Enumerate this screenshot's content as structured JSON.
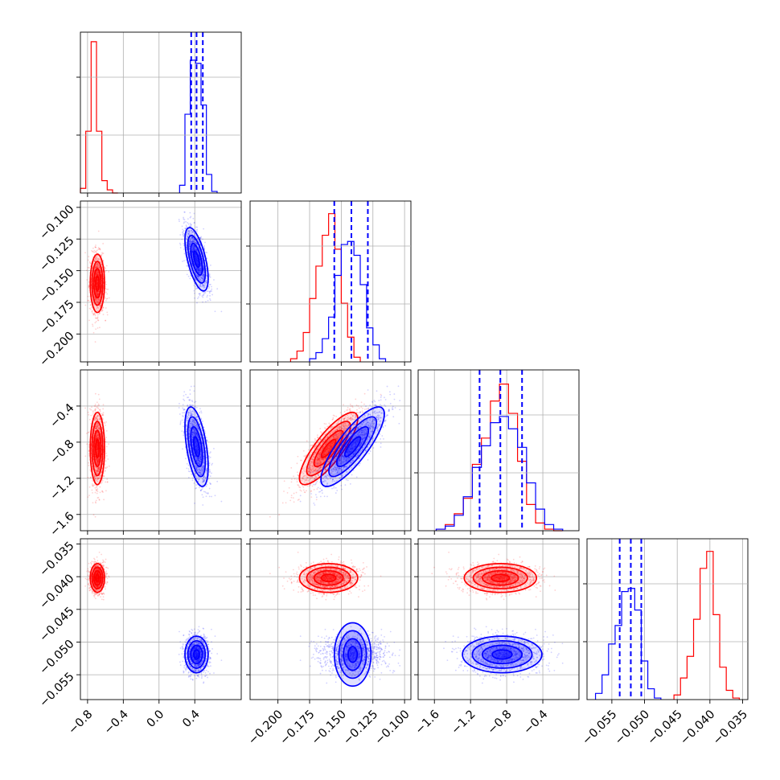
{
  "colors": {
    "red": "#ff0000",
    "blue": "#0000ff",
    "grid": "#b0b0b0",
    "axes": "#000000"
  },
  "chart_data": {
    "type": "corner",
    "grid": true,
    "parameters": [
      {
        "range": [
          -0.88,
          0.92
        ],
        "ticks": [
          -0.8,
          -0.4,
          0.0,
          0.4
        ],
        "tick_labels": [
          "−0.8",
          "−0.4",
          "0.0",
          "0.4"
        ],
        "quantiles_blue": [
          0.36,
          0.42,
          0.49
        ],
        "hist_red": {
          "edges": [
            -0.88,
            -0.82,
            -0.76,
            -0.7,
            -0.64,
            -0.58,
            -0.52,
            -0.46
          ],
          "counts": [
            0.03,
            0.4,
            0.98,
            0.4,
            0.08,
            0.02,
            0.0
          ]
        },
        "hist_blue": {
          "edges": [
            0.23,
            0.29,
            0.35,
            0.41,
            0.47,
            0.53,
            0.59,
            0.65
          ],
          "counts": [
            0.05,
            0.51,
            0.86,
            0.84,
            0.57,
            0.12,
            0.01
          ]
        }
      },
      {
        "range": [
          -0.222,
          -0.095
        ],
        "ticks": [
          -0.2,
          -0.175,
          -0.15,
          -0.125,
          -0.1
        ],
        "tick_labels": [
          "−0.200",
          "−0.175",
          "−0.150",
          "−0.125",
          "−0.100"
        ],
        "quantiles_blue": [
          -0.1555,
          -0.142,
          -0.129
        ],
        "hist_red": {
          "edges": [
            -0.19,
            -0.185,
            -0.18,
            -0.175,
            -0.17,
            -0.165,
            -0.16,
            -0.155,
            -0.15,
            -0.145,
            -0.14,
            -0.135
          ],
          "counts": [
            0.02,
            0.07,
            0.19,
            0.41,
            0.62,
            0.82,
            0.96,
            0.73,
            0.38,
            0.16,
            0.03
          ]
        },
        "hist_blue": {
          "edges": [
            -0.175,
            -0.17,
            -0.165,
            -0.16,
            -0.155,
            -0.15,
            -0.145,
            -0.14,
            -0.135,
            -0.13,
            -0.125,
            -0.12,
            -0.115
          ],
          "counts": [
            0.02,
            0.06,
            0.15,
            0.29,
            0.56,
            0.76,
            0.78,
            0.69,
            0.5,
            0.22,
            0.11,
            0.02
          ]
        }
      },
      {
        "range": [
          -1.78,
          0.0
        ],
        "ticks": [
          -1.6,
          -1.2,
          -0.8,
          -0.4
        ],
        "tick_labels": [
          "−1.6",
          "−1.2",
          "−0.8",
          "−0.4"
        ],
        "quantiles_blue": [
          -1.1,
          -0.87,
          -0.63
        ],
        "hist_red": {
          "edges": [
            -1.58,
            -1.48,
            -1.38,
            -1.28,
            -1.18,
            -1.08,
            -0.98,
            -0.88,
            -0.78,
            -0.68,
            -0.58,
            -0.48,
            -0.38,
            -0.28,
            -0.18
          ],
          "counts": [
            0.01,
            0.04,
            0.11,
            0.21,
            0.43,
            0.6,
            0.84,
            0.95,
            0.76,
            0.45,
            0.17,
            0.05,
            0.01,
            0.0
          ]
        },
        "hist_blue": {
          "edges": [
            -1.58,
            -1.48,
            -1.38,
            -1.28,
            -1.18,
            -1.08,
            -0.98,
            -0.88,
            -0.78,
            -0.68,
            -0.58,
            -0.48,
            -0.38,
            -0.28,
            -0.18
          ],
          "counts": [
            0.01,
            0.03,
            0.1,
            0.22,
            0.41,
            0.55,
            0.7,
            0.74,
            0.66,
            0.54,
            0.31,
            0.14,
            0.04,
            0.01
          ]
        }
      },
      {
        "range": [
          -0.0588,
          -0.0342
        ],
        "ticks": [
          -0.055,
          -0.05,
          -0.045,
          -0.04,
          -0.035
        ],
        "tick_labels": [
          "−0.055",
          "−0.050",
          "−0.045",
          "−0.040",
          "−0.035"
        ],
        "quantiles_blue": [
          -0.0538,
          -0.0521,
          -0.0505
        ],
        "hist_red": {
          "edges": [
            -0.0455,
            -0.0445,
            -0.0435,
            -0.0425,
            -0.0415,
            -0.0405,
            -0.0395,
            -0.0385,
            -0.0375,
            -0.0365,
            -0.0355
          ],
          "counts": [
            0.03,
            0.14,
            0.28,
            0.52,
            0.85,
            0.96,
            0.55,
            0.21,
            0.06,
            0.01
          ]
        },
        "hist_blue": {
          "edges": [
            -0.0575,
            -0.0565,
            -0.0555,
            -0.0545,
            -0.0535,
            -0.0525,
            -0.0515,
            -0.0505,
            -0.0495,
            -0.0485,
            -0.0475
          ],
          "counts": [
            0.04,
            0.16,
            0.36,
            0.48,
            0.7,
            0.72,
            0.58,
            0.25,
            0.07,
            0.01
          ]
        }
      }
    ],
    "samples": {
      "red": {
        "mean": [
          -0.69,
          -0.16,
          -0.87,
          -0.0402
        ],
        "sd": [
          0.04,
          0.0115,
          0.2,
          0.0011
        ],
        "corr": [
          [
            1,
            0,
            0,
            0
          ],
          [
            0,
            1,
            0.82,
            0
          ],
          [
            0,
            0.82,
            1,
            0
          ],
          [
            0,
            0,
            0,
            1
          ]
        ]
      },
      "blue": {
        "mean": [
          0.42,
          -0.141,
          -0.85,
          -0.0519
        ],
        "sd": [
          0.065,
          0.0125,
          0.22,
          0.0014
        ],
        "corr": [
          [
            1,
            -0.6,
            -0.5,
            0
          ],
          [
            -0.6,
            1,
            0.82,
            0
          ],
          [
            -0.5,
            0.82,
            1,
            0
          ],
          [
            0,
            0,
            0,
            1
          ]
        ]
      }
    }
  }
}
